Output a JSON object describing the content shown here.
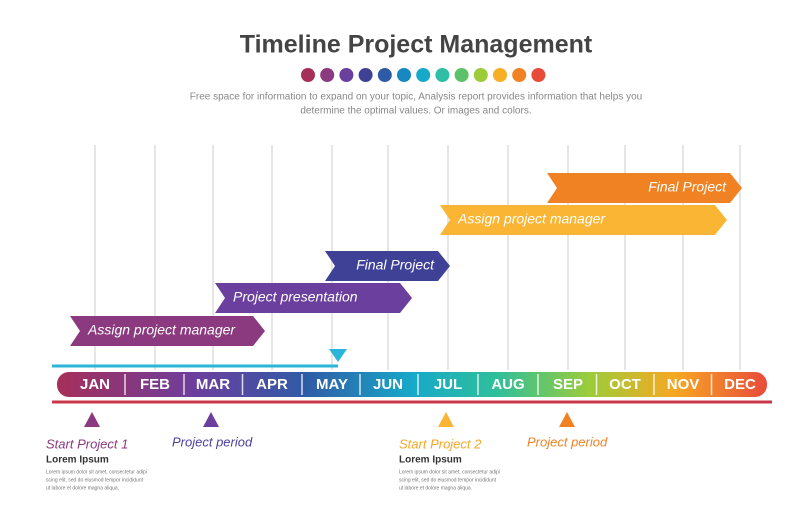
{
  "header": {
    "title": "Timeline Project Management",
    "subtitle": [
      "Free space for information to expand on your topic, Analysis report provides information that helps you",
      "determine the optimal values. Or images and colors."
    ]
  },
  "months": [
    "JAN",
    "FEB",
    "MAR",
    "APR",
    "MAY",
    "JUN",
    "JUL",
    "AUG",
    "SEP",
    "OCT",
    "NOV",
    "DEC"
  ],
  "tasks": [
    {
      "label": "Assign project manager",
      "color": "#8b3a7f"
    },
    {
      "label": "Project presentation",
      "color": "#6b3f9e"
    },
    {
      "label": "Final Project",
      "color": "#3f4196"
    },
    {
      "label": "Assign project manager",
      "color": "#fab535"
    },
    {
      "label": "Final Project",
      "color": "#f08224"
    }
  ],
  "notes": [
    {
      "title": "Start  Project 1",
      "name": "Lorem Ipsum",
      "lines": [
        "Lorem ipsum dolor sit amet, consectetur adipi",
        "scing elit, sed do eiusmod tempor incididunt",
        "ut labore et dolore magna aliqua."
      ]
    },
    {
      "title": "Project period"
    },
    {
      "title": "Start  Project 2",
      "name": "Lorem Ipsum",
      "lines": [
        "Lorem ipsum dolor sit amet, consectetur adipi",
        "scing elit, sed do eiusmod tempor incididunt",
        "ut labore et dolore magna aliqua."
      ]
    },
    {
      "title": "Project period"
    }
  ]
}
